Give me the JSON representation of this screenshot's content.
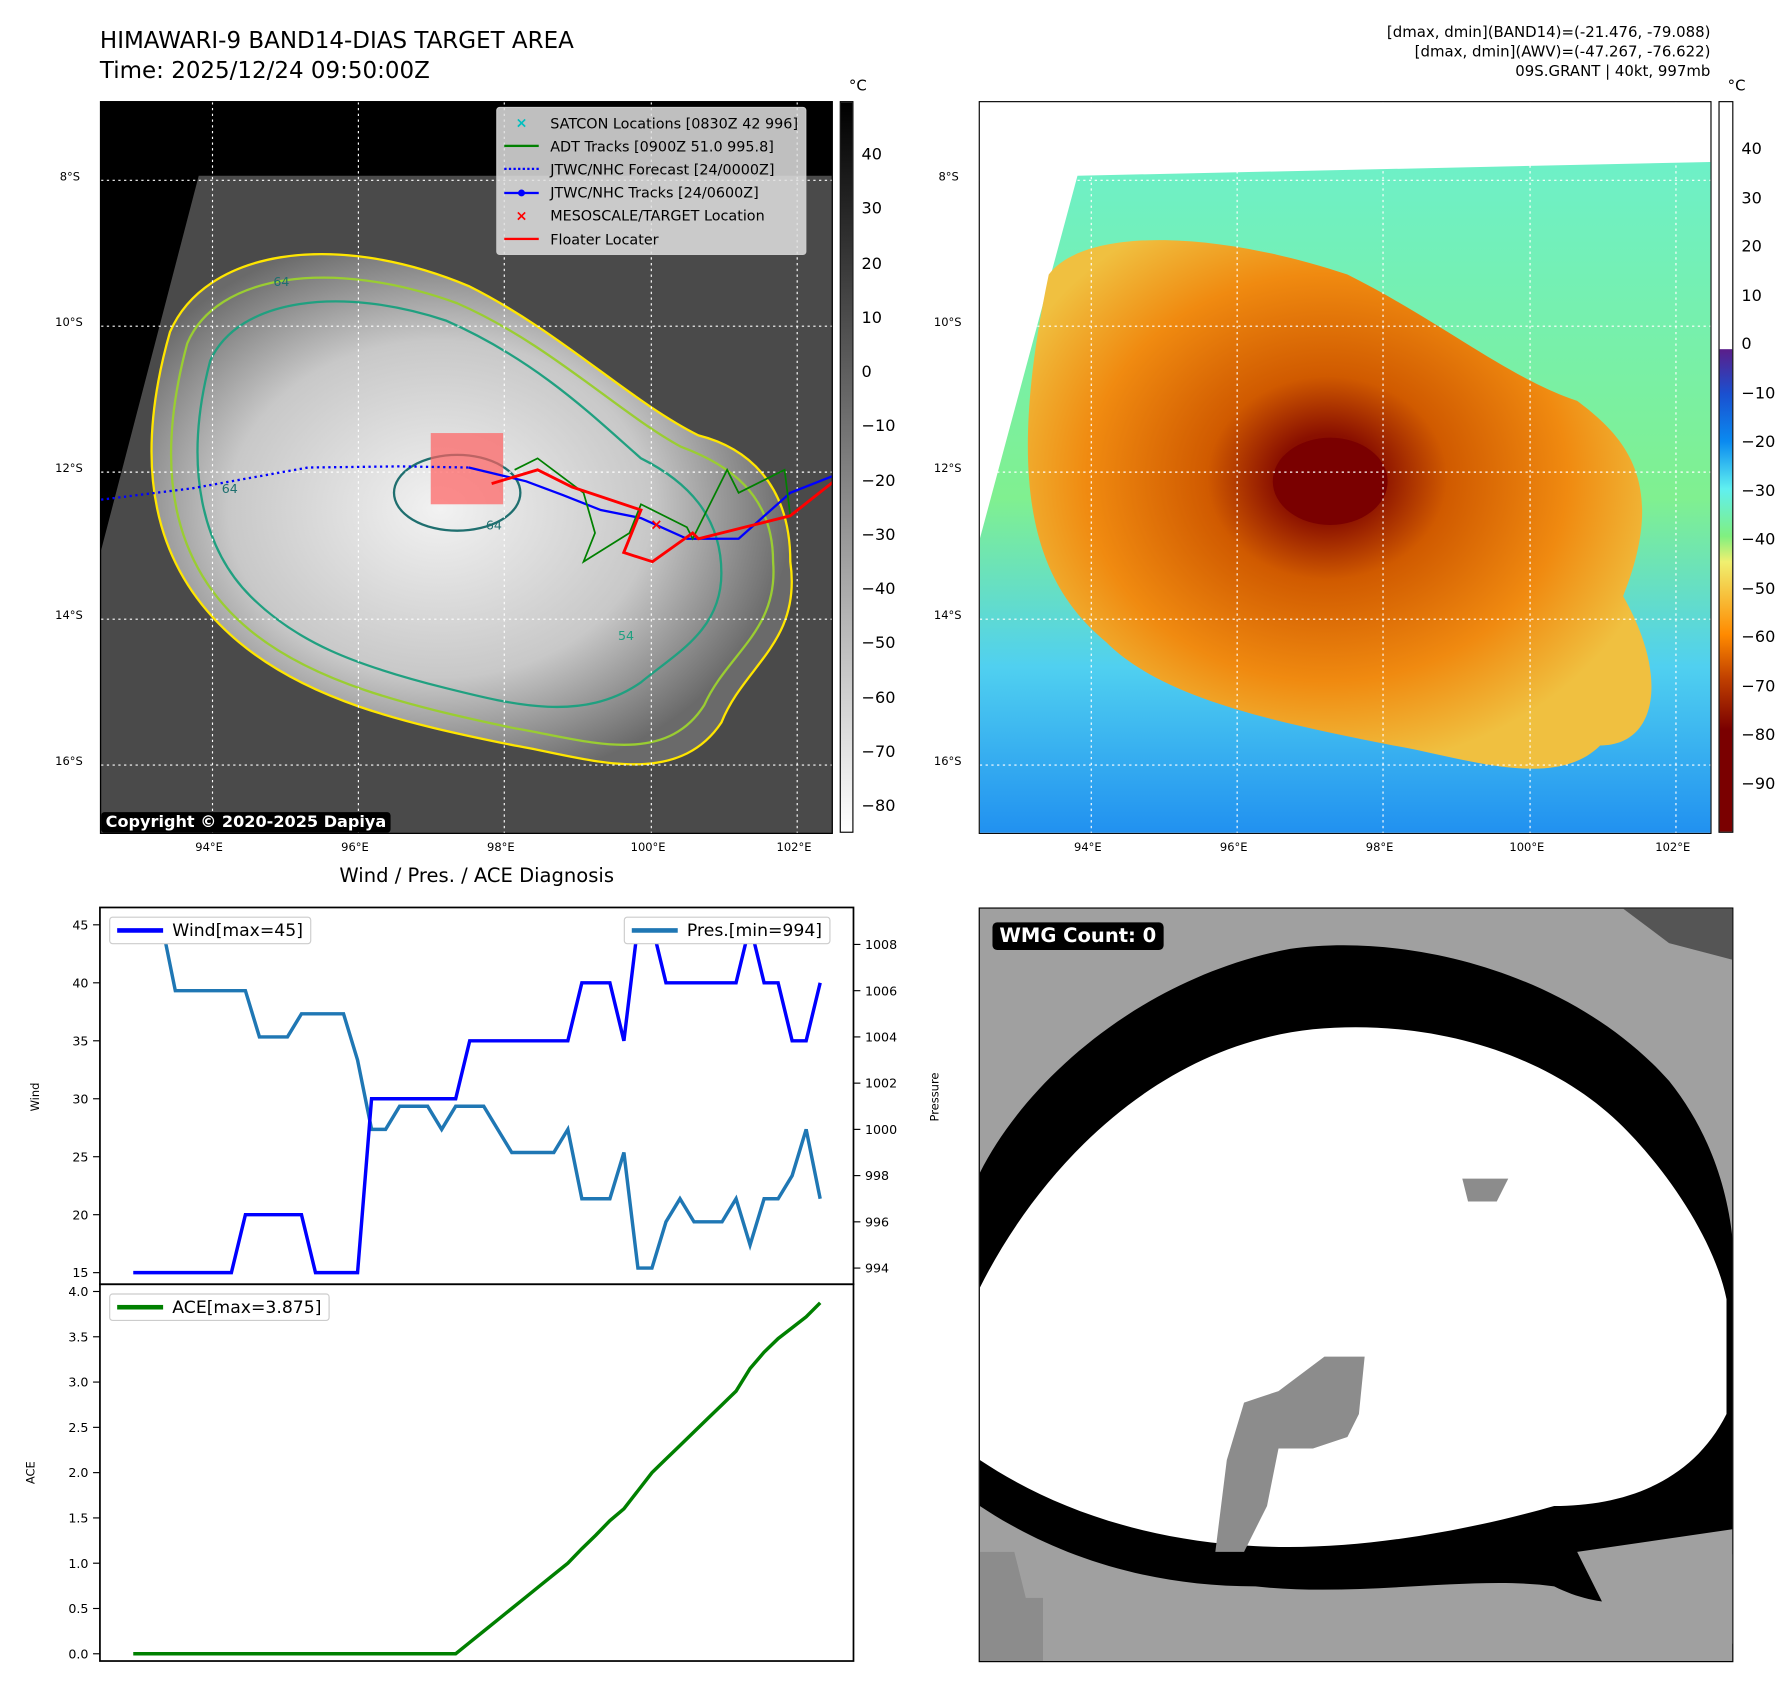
{
  "header": {
    "title": "HIMAWARI-9 BAND14-DIAS TARGET AREA",
    "time": "Time: 2025/12/24 09:50:00Z",
    "info_line1": "[dmax, dmin](BAND14)=(-21.476, -79.088)",
    "info_line2": "[dmax, dmin](AWV)=(-47.267, -76.622)",
    "info_line3": "09S.GRANT | 40kt, 997mb"
  },
  "map": {
    "lat_labels": [
      "8°S",
      "10°S",
      "12°S",
      "14°S",
      "16°S"
    ],
    "lon_labels": [
      "94°E",
      "96°E",
      "98°E",
      "100°E",
      "102°E"
    ],
    "copyright": "Copyright © 2020-2025 Dapiya",
    "contour_labels": [
      "64",
      "64",
      "64",
      "54"
    ],
    "legend": [
      {
        "label": "SATCON Locations [0830Z 42 996]",
        "color": "#00bfbf",
        "marker": "x"
      },
      {
        "label": "ADT Tracks [0900Z 51.0 995.8]",
        "color": "#008000",
        "marker": "line"
      },
      {
        "label": "JTWC/NHC Forecast [24/0000Z]",
        "color": "#0000ff",
        "marker": "dotted"
      },
      {
        "label": "JTWC/NHC Tracks [24/0600Z]",
        "color": "#0000ff",
        "marker": "line-dot"
      },
      {
        "label": "MESOSCALE/TARGET Location",
        "color": "#ff0000",
        "marker": "x"
      },
      {
        "label": "Floater Locater",
        "color": "#ff0000",
        "marker": "line"
      }
    ]
  },
  "colorbar_gray": {
    "unit": "°C",
    "ticks": [
      "40",
      "30",
      "20",
      "10",
      "0",
      "−10",
      "−20",
      "−30",
      "−40",
      "−50",
      "−60",
      "−70",
      "−80"
    ]
  },
  "colorbar_color": {
    "unit": "°C",
    "ticks": [
      "40",
      "30",
      "20",
      "10",
      "0",
      "−10",
      "−20",
      "−30",
      "−40",
      "−50",
      "−60",
      "−70",
      "−80",
      "−90"
    ]
  },
  "wmg": {
    "label": "WMG Count: 0"
  },
  "chart_data": [
    {
      "type": "line",
      "title": "Wind / Pres. / ACE Diagnosis",
      "ylabel": "Wind",
      "y2label": "Pressure",
      "ylim": [
        14,
        46.5
      ],
      "y2lim": [
        993.3,
        1009.6
      ],
      "yticks": [
        "15",
        "20",
        "25",
        "30",
        "35",
        "40",
        "45"
      ],
      "y2ticks": [
        "994",
        "996",
        "998",
        "1000",
        "1002",
        "1004",
        "1006",
        "1008"
      ],
      "series": [
        {
          "name": "Wind[max=45]",
          "color": "#0000ff",
          "axis": "left",
          "values": [
            15,
            15,
            15,
            15,
            15,
            15,
            15,
            15,
            20,
            20,
            20,
            20,
            20,
            15,
            15,
            15,
            15,
            30,
            30,
            30,
            30,
            30,
            30,
            30,
            35,
            35,
            35,
            35,
            35,
            35,
            35,
            35,
            40,
            40,
            40,
            35,
            45,
            45,
            40,
            40,
            40,
            40,
            40,
            40,
            45,
            40,
            40,
            35,
            35,
            40
          ]
        },
        {
          "name": "Pres.[min=994]",
          "color": "#1f77b4",
          "axis": "right",
          "values": [
            1009,
            1009,
            1009,
            1006,
            1006,
            1006,
            1006,
            1006,
            1006,
            1004,
            1004,
            1004,
            1005,
            1005,
            1005,
            1005,
            1003,
            1000,
            1000,
            1001,
            1001,
            1001,
            1000,
            1001,
            1001,
            1001,
            1000,
            999,
            999,
            999,
            999,
            1000,
            997,
            997,
            997,
            999,
            994,
            994,
            996,
            997,
            996,
            996,
            996,
            997,
            995,
            997,
            997,
            998,
            1000,
            997
          ]
        }
      ]
    },
    {
      "type": "line",
      "ylabel": "ACE",
      "ylim": [
        -0.08,
        4.08
      ],
      "yticks": [
        "0.0",
        "0.5",
        "1.0",
        "1.5",
        "2.0",
        "2.5",
        "3.0",
        "3.5",
        "4.0"
      ],
      "series": [
        {
          "name": "ACE[max=3.875]",
          "color": "#008000",
          "values": [
            0,
            0,
            0,
            0,
            0,
            0,
            0,
            0,
            0,
            0,
            0,
            0,
            0,
            0,
            0,
            0,
            0,
            0,
            0,
            0,
            0,
            0,
            0,
            0,
            0.125,
            0.25,
            0.375,
            0.5,
            0.625,
            0.75,
            0.875,
            1.0,
            1.16,
            1.31,
            1.47,
            1.6,
            1.8,
            2.0,
            2.15,
            2.3,
            2.45,
            2.6,
            2.75,
            2.9,
            3.15,
            3.33,
            3.48,
            3.6,
            3.72,
            3.875
          ]
        }
      ]
    }
  ]
}
